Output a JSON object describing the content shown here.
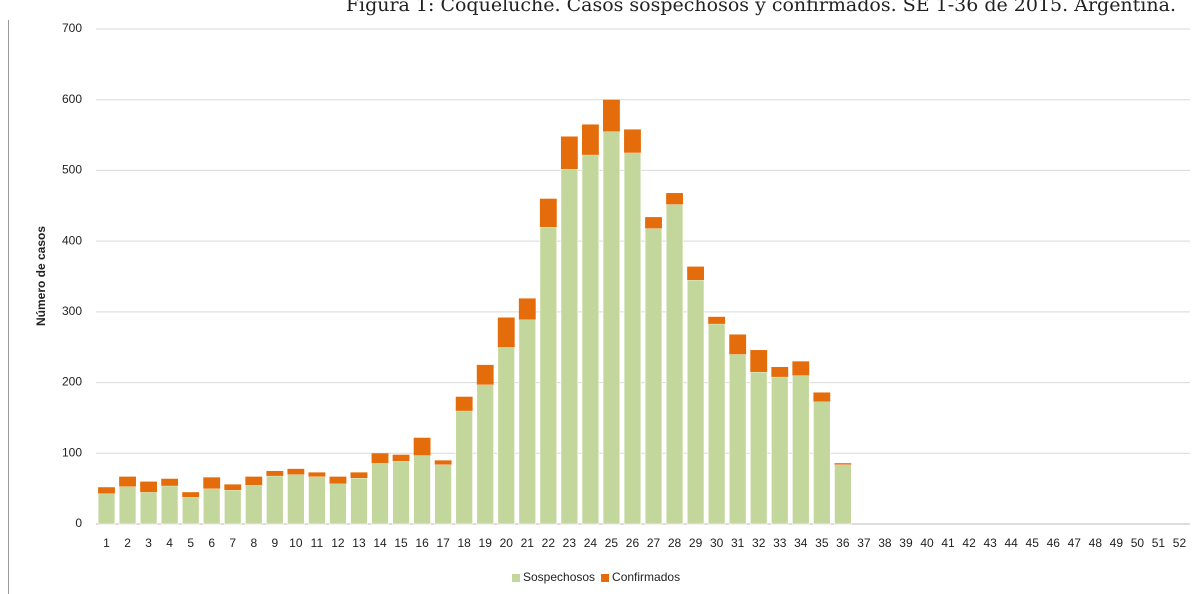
{
  "chart_data": {
    "type": "stacked_bar",
    "title": "Figura 1: Coqueluche. Casos sospechosos y confirmados. SE 1-36 de 2015. Argentina.",
    "y_label": "Número de casos",
    "categories": [
      "1",
      "2",
      "3",
      "4",
      "5",
      "6",
      "7",
      "8",
      "9",
      "10",
      "11",
      "12",
      "13",
      "14",
      "15",
      "16",
      "17",
      "18",
      "19",
      "20",
      "21",
      "22",
      "23",
      "24",
      "25",
      "26",
      "27",
      "28",
      "29",
      "30",
      "31",
      "32",
      "33",
      "34",
      "35",
      "36",
      "37",
      "38",
      "39",
      "40",
      "41",
      "42",
      "43",
      "44",
      "45",
      "46",
      "47",
      "48",
      "49",
      "50",
      "51",
      "52"
    ],
    "series": [
      {
        "name": "Sospechosos",
        "color": "#c3d69b",
        "values": [
          43,
          53,
          45,
          54,
          38,
          50,
          48,
          55,
          68,
          70,
          67,
          57,
          65,
          86,
          89,
          97,
          84,
          160,
          197,
          250,
          289,
          420,
          502,
          522,
          555,
          525,
          418,
          452,
          345,
          283,
          240,
          215,
          208,
          210,
          173,
          84,
          null,
          null,
          null,
          null,
          null,
          null,
          null,
          null,
          null,
          null,
          null,
          null,
          null,
          null,
          null,
          null
        ]
      },
      {
        "name": "Confirmados",
        "color": "#e46c0a",
        "values": [
          9,
          14,
          15,
          10,
          7,
          16,
          8,
          12,
          7,
          8,
          6,
          10,
          8,
          14,
          9,
          25,
          6,
          20,
          28,
          42,
          30,
          40,
          46,
          43,
          45,
          33,
          16,
          16,
          19,
          10,
          28,
          31,
          14,
          20,
          13,
          2,
          null,
          null,
          null,
          null,
          null,
          null,
          null,
          null,
          null,
          null,
          null,
          null,
          null,
          null,
          null,
          null
        ]
      }
    ],
    "ylim": [
      0,
      700
    ],
    "yticks": [
      0,
      100,
      200,
      300,
      400,
      500,
      600,
      700
    ],
    "grid": true,
    "legend": "bottom"
  }
}
